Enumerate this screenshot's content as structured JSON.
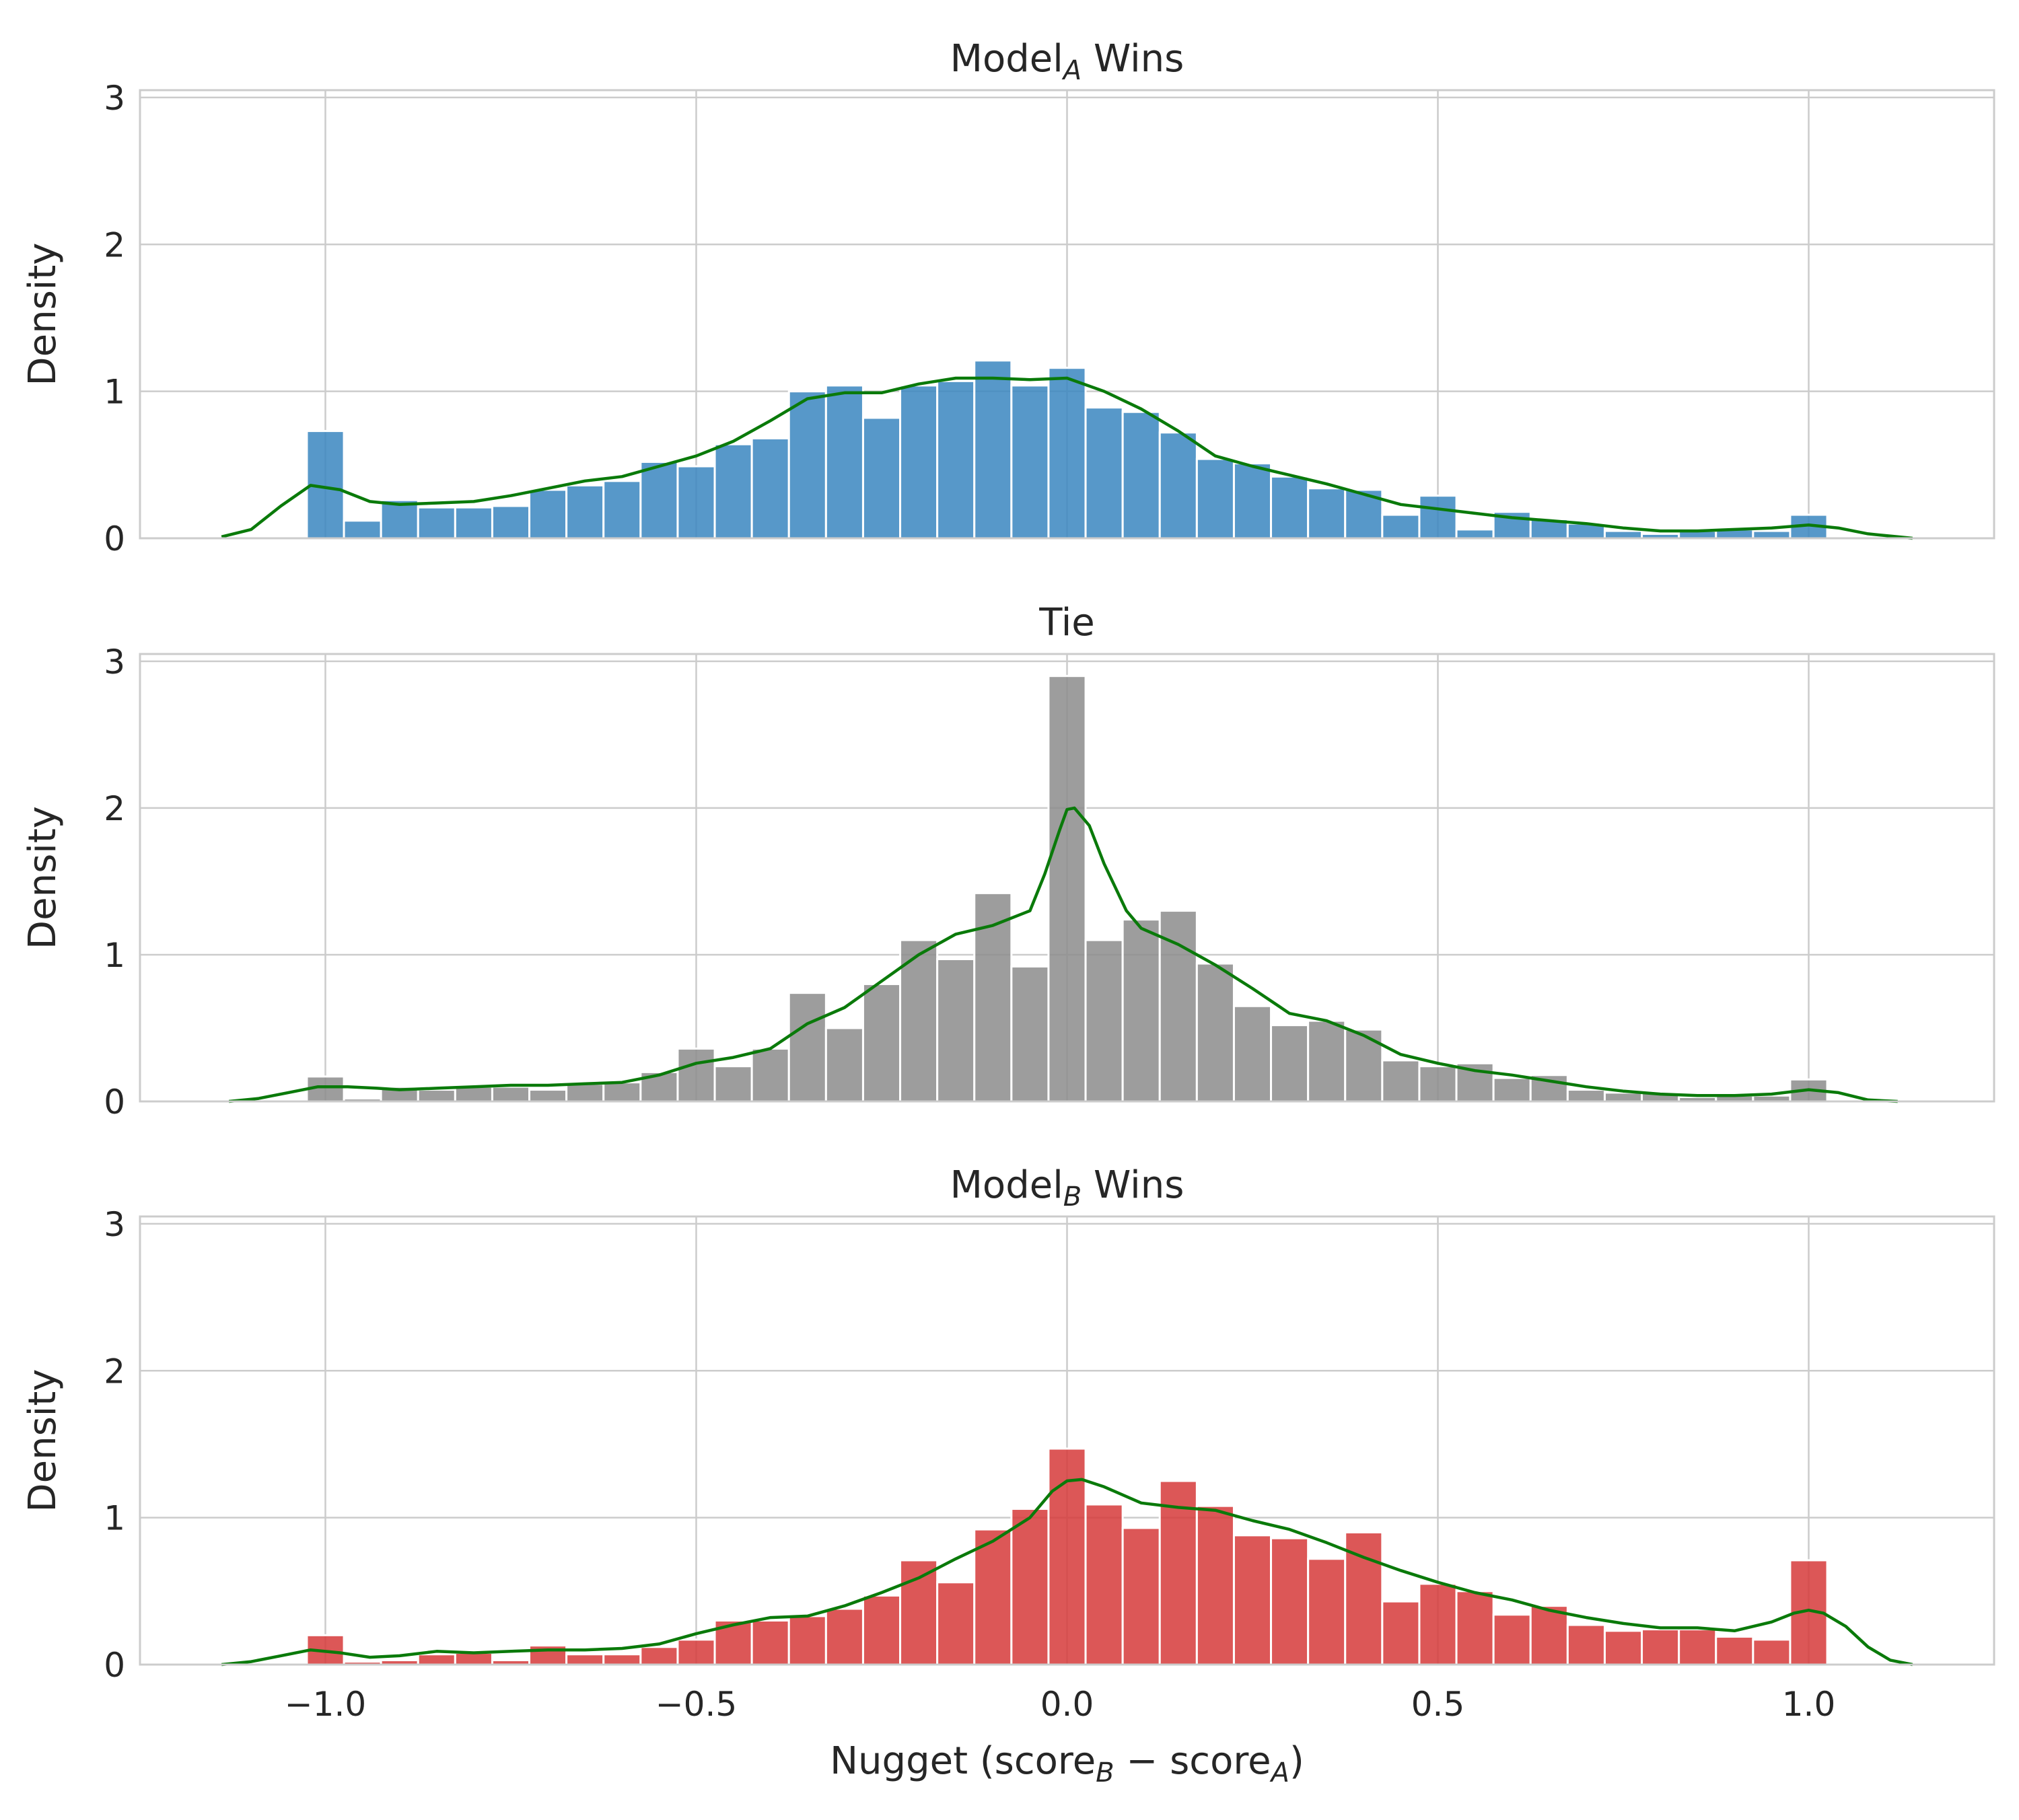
{
  "chart_data": [
    {
      "type": "bar",
      "title": "Model",
      "title_sub": "A",
      "title_suffix": " Wins",
      "xlabel": "",
      "ylabel": "Density",
      "bar_color": "#3a86c0",
      "kde_color": "#0a7a0a",
      "xlim": [
        -1.25,
        1.25
      ],
      "ylim": [
        0,
        3.05
      ],
      "xticks": [
        -1.0,
        -0.5,
        0.0,
        0.5,
        1.0
      ],
      "xtick_labels": [
        "−1.0",
        "−0.5",
        "0.0",
        "0.5",
        "1.0"
      ],
      "yticks": [
        0,
        1,
        2,
        3
      ],
      "ytick_labels": [
        "0",
        "1",
        "2",
        "3"
      ],
      "bin_start": -1.025,
      "bin_width": 0.05,
      "values": [
        0.73,
        0.12,
        0.26,
        0.21,
        0.21,
        0.22,
        0.33,
        0.36,
        0.39,
        0.52,
        0.49,
        0.64,
        0.68,
        1.0,
        1.04,
        0.82,
        1.04,
        1.07,
        1.21,
        1.04,
        1.16,
        0.89,
        0.86,
        0.72,
        0.54,
        0.51,
        0.42,
        0.34,
        0.33,
        0.16,
        0.29,
        0.06,
        0.18,
        0.13,
        0.1,
        0.05,
        0.03,
        0.05,
        0.06,
        0.05,
        0.16
      ],
      "kde_x": [
        -1.14,
        -1.1,
        -1.06,
        -1.02,
        -0.98,
        -0.94,
        -0.9,
        -0.85,
        -0.8,
        -0.75,
        -0.7,
        -0.65,
        -0.6,
        -0.55,
        -0.5,
        -0.45,
        -0.4,
        -0.35,
        -0.3,
        -0.25,
        -0.2,
        -0.15,
        -0.1,
        -0.05,
        0.0,
        0.05,
        0.1,
        0.15,
        0.2,
        0.25,
        0.3,
        0.35,
        0.4,
        0.45,
        0.5,
        0.55,
        0.6,
        0.65,
        0.7,
        0.75,
        0.8,
        0.85,
        0.9,
        0.95,
        1.0,
        1.04,
        1.08,
        1.12,
        1.14
      ],
      "kde_y": [
        0.01,
        0.06,
        0.22,
        0.36,
        0.33,
        0.25,
        0.23,
        0.24,
        0.25,
        0.29,
        0.34,
        0.39,
        0.42,
        0.49,
        0.56,
        0.66,
        0.8,
        0.95,
        0.99,
        0.99,
        1.05,
        1.09,
        1.09,
        1.08,
        1.09,
        1.0,
        0.88,
        0.73,
        0.56,
        0.49,
        0.43,
        0.37,
        0.3,
        0.23,
        0.2,
        0.17,
        0.14,
        0.12,
        0.1,
        0.07,
        0.05,
        0.05,
        0.06,
        0.07,
        0.09,
        0.07,
        0.03,
        0.01,
        0.0
      ]
    },
    {
      "type": "bar",
      "title": "Tie",
      "title_sub": "",
      "title_suffix": "",
      "xlabel": "",
      "ylabel": "Density",
      "bar_color": "#8c8c8c",
      "kde_color": "#0a7a0a",
      "xlim": [
        -1.25,
        1.25
      ],
      "ylim": [
        0,
        3.05
      ],
      "xticks": [
        -1.0,
        -0.5,
        0.0,
        0.5,
        1.0
      ],
      "xtick_labels": [
        "−1.0",
        "−0.5",
        "0.0",
        "0.5",
        "1.0"
      ],
      "yticks": [
        0,
        1,
        2,
        3
      ],
      "ytick_labels": [
        "0",
        "1",
        "2",
        "3"
      ],
      "bin_start": -1.025,
      "bin_width": 0.05,
      "values": [
        0.17,
        0.02,
        0.1,
        0.08,
        0.1,
        0.1,
        0.08,
        0.12,
        0.13,
        0.2,
        0.36,
        0.24,
        0.36,
        0.74,
        0.5,
        0.8,
        1.1,
        0.97,
        1.42,
        0.92,
        2.9,
        1.1,
        1.24,
        1.3,
        0.94,
        0.65,
        0.52,
        0.55,
        0.49,
        0.28,
        0.24,
        0.26,
        0.16,
        0.18,
        0.08,
        0.06,
        0.06,
        0.03,
        0.04,
        0.04,
        0.15
      ],
      "kde_x": [
        -1.13,
        -1.09,
        -1.05,
        -1.01,
        -0.97,
        -0.93,
        -0.9,
        -0.85,
        -0.8,
        -0.75,
        -0.7,
        -0.65,
        -0.6,
        -0.55,
        -0.5,
        -0.45,
        -0.4,
        -0.35,
        -0.3,
        -0.25,
        -0.2,
        -0.15,
        -0.1,
        -0.05,
        -0.03,
        -0.01,
        0.0,
        0.01,
        0.03,
        0.05,
        0.08,
        0.1,
        0.15,
        0.2,
        0.25,
        0.3,
        0.35,
        0.4,
        0.45,
        0.5,
        0.55,
        0.6,
        0.65,
        0.7,
        0.75,
        0.8,
        0.85,
        0.9,
        0.95,
        1.0,
        1.04,
        1.08,
        1.12
      ],
      "kde_y": [
        0.0,
        0.02,
        0.06,
        0.1,
        0.1,
        0.09,
        0.08,
        0.09,
        0.1,
        0.11,
        0.11,
        0.12,
        0.13,
        0.18,
        0.26,
        0.3,
        0.36,
        0.53,
        0.64,
        0.82,
        1.0,
        1.14,
        1.2,
        1.3,
        1.55,
        1.85,
        1.99,
        2.0,
        1.88,
        1.62,
        1.3,
        1.18,
        1.07,
        0.93,
        0.77,
        0.6,
        0.55,
        0.45,
        0.32,
        0.26,
        0.21,
        0.18,
        0.14,
        0.1,
        0.07,
        0.05,
        0.04,
        0.04,
        0.05,
        0.08,
        0.06,
        0.01,
        0.0
      ]
    },
    {
      "type": "bar",
      "title": "Model",
      "title_sub": "B",
      "title_suffix": " Wins",
      "xlabel": "Nugget (score",
      "xlabel_sub1": "B",
      "xlabel_mid": " − score",
      "xlabel_sub2": "A",
      "xlabel_end": ")",
      "ylabel": "Density",
      "bar_color": "#d63a3a",
      "kde_color": "#0a7a0a",
      "xlim": [
        -1.25,
        1.25
      ],
      "ylim": [
        0,
        3.05
      ],
      "xticks": [
        -1.0,
        -0.5,
        0.0,
        0.5,
        1.0
      ],
      "xtick_labels": [
        "−1.0",
        "−0.5",
        "0.0",
        "0.5",
        "1.0"
      ],
      "yticks": [
        0,
        1,
        2,
        3
      ],
      "ytick_labels": [
        "0",
        "1",
        "2",
        "3"
      ],
      "bin_start": -1.025,
      "bin_width": 0.05,
      "values": [
        0.2,
        0.02,
        0.03,
        0.07,
        0.08,
        0.03,
        0.13,
        0.07,
        0.07,
        0.12,
        0.17,
        0.3,
        0.3,
        0.33,
        0.38,
        0.47,
        0.71,
        0.56,
        0.92,
        1.06,
        1.47,
        1.09,
        0.93,
        1.25,
        1.08,
        0.88,
        0.86,
        0.72,
        0.9,
        0.43,
        0.55,
        0.5,
        0.34,
        0.4,
        0.27,
        0.23,
        0.24,
        0.24,
        0.19,
        0.17,
        0.71
      ],
      "kde_x": [
        -1.14,
        -1.1,
        -1.06,
        -1.02,
        -0.98,
        -0.94,
        -0.9,
        -0.85,
        -0.8,
        -0.75,
        -0.7,
        -0.65,
        -0.6,
        -0.55,
        -0.5,
        -0.45,
        -0.4,
        -0.35,
        -0.3,
        -0.25,
        -0.2,
        -0.15,
        -0.1,
        -0.05,
        -0.02,
        0.0,
        0.02,
        0.05,
        0.1,
        0.15,
        0.2,
        0.25,
        0.3,
        0.35,
        0.4,
        0.45,
        0.5,
        0.55,
        0.6,
        0.65,
        0.7,
        0.75,
        0.8,
        0.85,
        0.9,
        0.95,
        0.98,
        1.0,
        1.02,
        1.05,
        1.08,
        1.11,
        1.14
      ],
      "kde_y": [
        0.0,
        0.02,
        0.06,
        0.1,
        0.08,
        0.05,
        0.06,
        0.09,
        0.08,
        0.09,
        0.1,
        0.1,
        0.11,
        0.14,
        0.21,
        0.27,
        0.32,
        0.33,
        0.4,
        0.49,
        0.59,
        0.72,
        0.84,
        1.0,
        1.18,
        1.25,
        1.26,
        1.21,
        1.1,
        1.07,
        1.05,
        0.98,
        0.92,
        0.83,
        0.73,
        0.64,
        0.56,
        0.49,
        0.44,
        0.37,
        0.32,
        0.28,
        0.25,
        0.25,
        0.23,
        0.29,
        0.35,
        0.37,
        0.35,
        0.26,
        0.12,
        0.03,
        0.0
      ]
    }
  ]
}
